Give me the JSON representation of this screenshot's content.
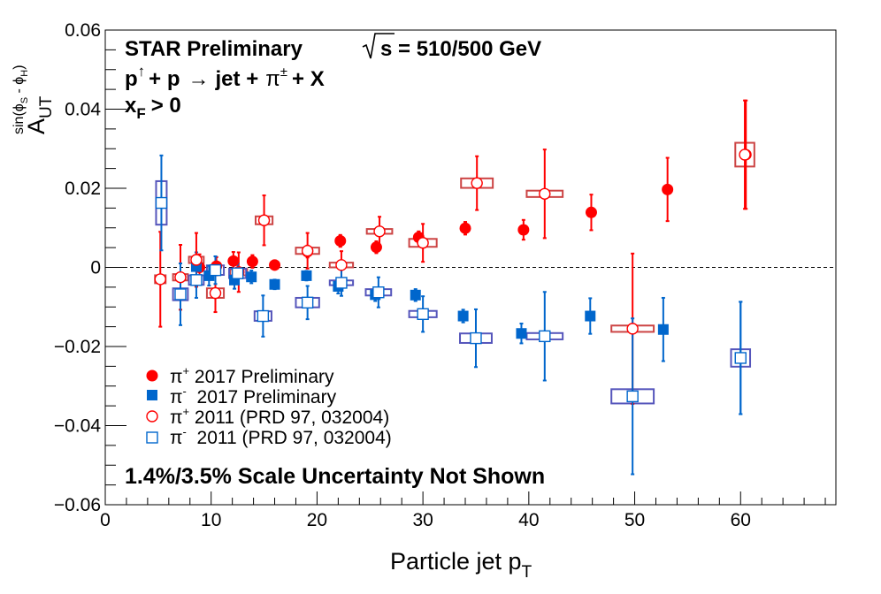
{
  "chart_data": {
    "type": "scatter",
    "title": {
      "line1_left": "STAR Preliminary",
      "line1_right": "s = 510/500 GeV",
      "reaction_p_up": "p",
      "reaction_up_arrow": "↑",
      "reaction_rest_1": "+ p",
      "reaction_arrow": "→",
      "reaction_rest_2": "jet +",
      "reaction_pi": "π",
      "reaction_pm": "±",
      "reaction_rest_3": "+ X",
      "xf_x": "x",
      "xf_sub": "F",
      "xf_rest": "> 0"
    },
    "annotation": "1.4%/3.5% Scale Uncertainty Not Shown",
    "xlabel": "Particle jet p",
    "xlabel_sub": "T",
    "ylabel_main": "A",
    "ylabel_sub": "UT",
    "ylabel_sup": "sin(ϕ",
    "ylabel_sup_s": "S",
    "ylabel_sup_mid": " - ϕ",
    "ylabel_sup_h": "H",
    "ylabel_sup_end": ")",
    "xlim": [
      0,
      69
    ],
    "ylim": [
      -0.06,
      0.06
    ],
    "xticks": [
      0,
      10,
      20,
      30,
      40,
      50,
      60
    ],
    "xtick_labels": [
      "0",
      "10",
      "20",
      "30",
      "40",
      "50",
      "60"
    ],
    "yticks": [
      -0.06,
      -0.04,
      -0.02,
      0,
      0.02,
      0.04,
      0.06
    ],
    "ytick_labels": [
      "−0.06",
      "−0.04",
      "−0.02",
      "0",
      "0.02",
      "0.04",
      "0.06"
    ],
    "reference_line": 0,
    "colors": {
      "red": "#ff0000",
      "blue": "#0066cc",
      "sys_red": "#cc4444",
      "sys_blue": "#5555bb"
    },
    "legend": [
      {
        "particle": "π",
        "charge": "+",
        "text": " 2017 Preliminary"
      },
      {
        "particle": "π",
        "charge": "-",
        "text": "  2017 Preliminary"
      },
      {
        "particle": "π",
        "charge": "+",
        "text": " 2011 (PRD 97, 032004)"
      },
      {
        "particle": "π",
        "charge": "-",
        "text": "  2011 (PRD 97, 032004)"
      }
    ],
    "series": [
      {
        "name": "π+ 2017 Preliminary",
        "marker": "filled-circle",
        "color": "#ff0000",
        "points": [
          {
            "x": 8.9,
            "y": 0.0,
            "err": 0.0033
          },
          {
            "x": 10.5,
            "y": 0.0003,
            "err": 0.0023
          },
          {
            "x": 12.1,
            "y": 0.0016,
            "err": 0.0023
          },
          {
            "x": 13.9,
            "y": 0.0015,
            "err": 0.0016
          },
          {
            "x": 16.0,
            "y": 0.0006,
            "err": 0.0012
          },
          {
            "x": 19.1,
            "y": 0.004,
            "err": 0.0015
          },
          {
            "x": 22.2,
            "y": 0.0067,
            "err": 0.0015
          },
          {
            "x": 25.6,
            "y": 0.0051,
            "err": 0.0015
          },
          {
            "x": 29.6,
            "y": 0.0076,
            "err": 0.0015
          },
          {
            "x": 34.0,
            "y": 0.0099,
            "err": 0.0016
          },
          {
            "x": 39.5,
            "y": 0.0095,
            "err": 0.0025
          },
          {
            "x": 45.9,
            "y": 0.0139,
            "err": 0.0045
          },
          {
            "x": 53.1,
            "y": 0.0197,
            "err": 0.008
          },
          {
            "x": 60.5,
            "y": 0.0285,
            "err": 0.0137
          }
        ]
      },
      {
        "name": "π- 2017 Preliminary",
        "marker": "filled-square",
        "color": "#0066cc",
        "points": [
          {
            "x": 8.6,
            "y": 0.0002,
            "err": 0.0036
          },
          {
            "x": 9.8,
            "y": -0.0021,
            "err": 0.0025
          },
          {
            "x": 12.2,
            "y": -0.0032,
            "err": 0.0022
          },
          {
            "x": 13.8,
            "y": -0.0024,
            "err": 0.0016
          },
          {
            "x": 16.0,
            "y": -0.0043,
            "err": 0.0012
          },
          {
            "x": 19.0,
            "y": -0.0021,
            "err": 0.0012
          },
          {
            "x": 22.0,
            "y": -0.0048,
            "err": 0.0018
          },
          {
            "x": 25.5,
            "y": -0.0069,
            "err": 0.0016
          },
          {
            "x": 29.3,
            "y": -0.007,
            "err": 0.0015
          },
          {
            "x": 33.8,
            "y": -0.0123,
            "err": 0.0016
          },
          {
            "x": 39.3,
            "y": -0.0167,
            "err": 0.0025
          },
          {
            "x": 45.8,
            "y": -0.0123,
            "err": 0.0045
          },
          {
            "x": 52.7,
            "y": -0.0157,
            "err": 0.008
          },
          {
            "x": 60.0,
            "y": -0.0229,
            "err": 0.0142
          }
        ]
      },
      {
        "name": "π+ 2011 (PRD 97, 032004)",
        "marker": "open-circle",
        "color": "#ff0000",
        "sys_color": "#cc4444",
        "points": [
          {
            "x": 5.2,
            "y": -0.003,
            "err": 0.012,
            "sys_x": 0.5,
            "sys_y": 0.001
          },
          {
            "x": 7.1,
            "y": -0.0025,
            "err": 0.0082,
            "sys_x": 0.7,
            "sys_y": 0.0008
          },
          {
            "x": 8.6,
            "y": 0.0019,
            "err": 0.0068,
            "sys_x": 0.7,
            "sys_y": 0.0008
          },
          {
            "x": 10.4,
            "y": -0.0065,
            "err": 0.0048,
            "sys_x": 0.8,
            "sys_y": 0.0012
          },
          {
            "x": 12.6,
            "y": -0.0012,
            "err": 0.005,
            "sys_x": 0.8,
            "sys_y": 0.0008
          },
          {
            "x": 15.0,
            "y": 0.0119,
            "err": 0.0063,
            "sys_x": 0.8,
            "sys_y": 0.001
          },
          {
            "x": 19.1,
            "y": 0.0042,
            "err": 0.0045,
            "sys_x": 1.1,
            "sys_y": 0.0008
          },
          {
            "x": 22.3,
            "y": 0.0006,
            "err": 0.0035,
            "sys_x": 1.1,
            "sys_y": 0.0006
          },
          {
            "x": 25.9,
            "y": 0.0091,
            "err": 0.0037,
            "sys_x": 1.2,
            "sys_y": 0.0006
          },
          {
            "x": 30.0,
            "y": 0.0062,
            "err": 0.0048,
            "sys_x": 1.3,
            "sys_y": 0.001
          },
          {
            "x": 35.1,
            "y": 0.0213,
            "err": 0.0068,
            "sys_x": 1.5,
            "sys_y": 0.0012
          },
          {
            "x": 41.5,
            "y": 0.0186,
            "err": 0.0112,
            "sys_x": 1.7,
            "sys_y": 0.0008
          },
          {
            "x": 49.8,
            "y": -0.0155,
            "err": 0.019,
            "sys_x": 2.0,
            "sys_y": 0.0008
          },
          {
            "x": 60.4,
            "y": 0.0285,
            "err": 0.0137,
            "sys_x": 0.9,
            "sys_y": 0.003
          }
        ]
      },
      {
        "name": "π- 2011 (PRD 97, 032004)",
        "marker": "open-square",
        "color": "#0066cc",
        "sys_color": "#5555bb",
        "points": [
          {
            "x": 5.3,
            "y": 0.0163,
            "err": 0.012,
            "sys_x": 0.5,
            "sys_y": 0.0055
          },
          {
            "x": 7.1,
            "y": -0.0068,
            "err": 0.0078,
            "sys_x": 0.7,
            "sys_y": 0.0015
          },
          {
            "x": 8.6,
            "y": -0.0032,
            "err": 0.0045,
            "sys_x": 0.7,
            "sys_y": 0.0012
          },
          {
            "x": 10.4,
            "y": -0.0007,
            "err": 0.0035,
            "sys_x": 0.8,
            "sys_y": 0.0012
          },
          {
            "x": 12.5,
            "y": -0.0015,
            "err": 0.0025,
            "sys_x": 0.8,
            "sys_y": 0.0012
          },
          {
            "x": 14.9,
            "y": -0.0123,
            "err": 0.0052,
            "sys_x": 0.8,
            "sys_y": 0.0012
          },
          {
            "x": 19.1,
            "y": -0.0089,
            "err": 0.0042,
            "sys_x": 1.1,
            "sys_y": 0.0012
          },
          {
            "x": 22.3,
            "y": -0.0039,
            "err": 0.0033,
            "sys_x": 1.1,
            "sys_y": 0.0006
          },
          {
            "x": 25.8,
            "y": -0.0063,
            "err": 0.0038,
            "sys_x": 1.2,
            "sys_y": 0.0008
          },
          {
            "x": 30.0,
            "y": -0.0118,
            "err": 0.0045,
            "sys_x": 1.3,
            "sys_y": 0.0008
          },
          {
            "x": 35.0,
            "y": -0.0179,
            "err": 0.0073,
            "sys_x": 1.5,
            "sys_y": 0.0012
          },
          {
            "x": 41.5,
            "y": -0.0174,
            "err": 0.0112,
            "sys_x": 1.7,
            "sys_y": 0.0008
          },
          {
            "x": 49.8,
            "y": -0.0326,
            "err": 0.0197,
            "sys_x": 2.0,
            "sys_y": 0.0018
          },
          {
            "x": 60.0,
            "y": -0.0229,
            "err": 0.0142,
            "sys_x": 0.9,
            "sys_y": 0.0022
          }
        ]
      }
    ]
  }
}
